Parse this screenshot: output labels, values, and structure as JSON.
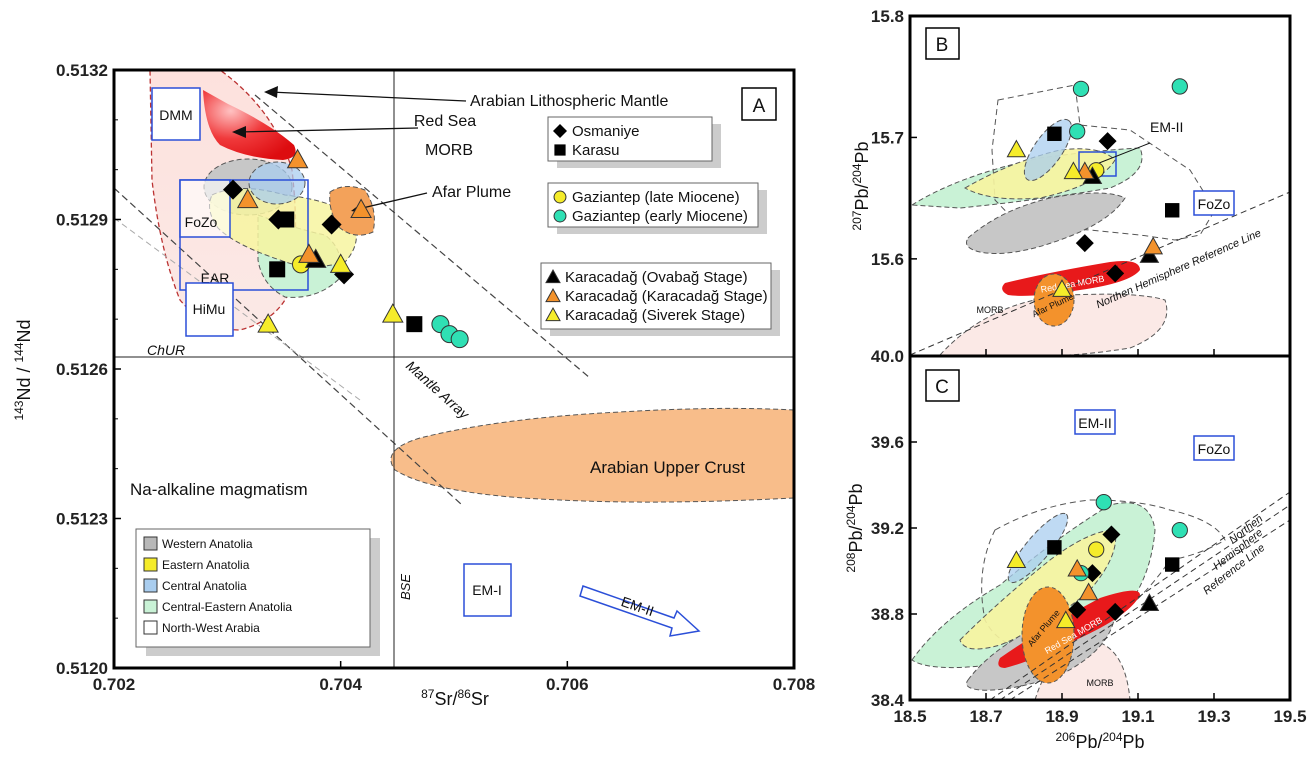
{
  "chart_data": [
    {
      "type": "scatter",
      "panel": "A",
      "xlabel": "87Sr/86Sr",
      "ylabel": "143Nd / 144Nd",
      "xlim": [
        0.702,
        0.708
      ],
      "ylim": [
        0.512,
        0.5132
      ],
      "x_ticks": [
        "0.702",
        "0.704",
        "0.706",
        "0.708"
      ],
      "y_ticks": [
        "0.5120",
        "0.5123",
        "0.5126",
        "0.5129",
        "0.5132"
      ],
      "annotations": {
        "arabian_litho": "Arabian Lithospheric Mantle",
        "red_sea": "Red Sea",
        "morb": "MORB",
        "afar": "Afar Plume",
        "dmm": "DMM",
        "fozo": "FoZo",
        "ear": "EAR",
        "himu": "HiMu",
        "chur": "ChUR",
        "mantle_array": "Mantle Array",
        "arabian_upper_crust": "Arabian Upper Crust",
        "na_alkaline": "Na-alkaline magmatism",
        "bse": "BSE",
        "em1": "EM-I",
        "em2": "EM-II"
      },
      "legend_symbols": [
        {
          "label": "Osmaniye",
          "marker": "diamond",
          "color": "#000000"
        },
        {
          "label": "Karasu",
          "marker": "square",
          "color": "#000000"
        },
        {
          "label": "Gaziantep (late Miocene)",
          "marker": "circle",
          "color": "#f5ec2a"
        },
        {
          "label": "Gaziantep (early Miocene)",
          "marker": "circle",
          "color": "#2fe0b4"
        },
        {
          "label": "Karacadağ (Ovabağ Stage)",
          "marker": "triangle",
          "color": "#000000"
        },
        {
          "label": "Karacadağ (Karacadağ Stage)",
          "marker": "triangle",
          "color": "#f3922c"
        },
        {
          "label": "Karacadağ (Siverek Stage)",
          "marker": "triangle",
          "color": "#f5ec2a"
        }
      ],
      "legend_fields": [
        {
          "label": "Western Anatolia",
          "color": "#b8b8b8"
        },
        {
          "label": "Eastern Anatolia",
          "color": "#f5ec2a"
        },
        {
          "label": "Central Anatolia",
          "color": "#a9cdef"
        },
        {
          "label": "Central-Eastern Anatolia",
          "color": "#c9f2d6"
        },
        {
          "label": "North-West Arabia",
          "color": "#ffffff"
        }
      ],
      "series": [
        {
          "name": "Osmaniye",
          "points": [
            [
              0.70305,
              0.51296
            ],
            [
              0.70345,
              0.5129
            ],
            [
              0.70392,
              0.51289
            ],
            [
              0.70403,
              0.51279
            ]
          ]
        },
        {
          "name": "Karasu",
          "points": [
            [
              0.70352,
              0.5129
            ],
            [
              0.70344,
              0.5128
            ],
            [
              0.70465,
              0.51269
            ]
          ]
        },
        {
          "name": "Gaziantep (late Miocene)",
          "points": [
            [
              0.70365,
              0.51281
            ]
          ]
        },
        {
          "name": "Gaziantep (early Miocene)",
          "points": [
            [
              0.70488,
              0.51269
            ],
            [
              0.70496,
              0.51267
            ],
            [
              0.70505,
              0.51266
            ]
          ]
        },
        {
          "name": "Karacadağ (Ovabağ Stage)",
          "points": [
            [
              0.70378,
              0.51282
            ]
          ]
        },
        {
          "name": "Karacadağ (Karacadağ Stage)",
          "points": [
            [
              0.70362,
              0.51302
            ],
            [
              0.70318,
              0.51294
            ],
            [
              0.70372,
              0.51283
            ],
            [
              0.70418,
              0.51292
            ]
          ]
        },
        {
          "name": "Karacadağ (Siverek Stage)",
          "points": [
            [
              0.70336,
              0.51269
            ],
            [
              0.704,
              0.51281
            ],
            [
              0.70446,
              0.51271
            ]
          ]
        }
      ]
    },
    {
      "type": "scatter",
      "panel": "B",
      "xlabel": "",
      "ylabel": "207Pb/204Pb",
      "xlim": [
        18.5,
        19.5
      ],
      "ylim": [
        15.52,
        15.8
      ],
      "y_ticks": [
        "15.6",
        "15.7",
        "15.8"
      ],
      "annotations": {
        "em2": "EM-II",
        "fozo": "FoZo",
        "red_sea_morb": "Red Sea MORB",
        "afar": "Afar Plume",
        "morb": "MORB",
        "nhrl": "Northen Hemisphere Reference Line"
      },
      "series": [
        {
          "name": "Osmaniye",
          "points": [
            [
              19.02,
              15.697
            ],
            [
              18.96,
              15.613
            ],
            [
              19.04,
              15.588
            ],
            [
              18.98,
              15.67
            ]
          ]
        },
        {
          "name": "Karasu",
          "points": [
            [
              18.88,
              15.703
            ],
            [
              19.19,
              15.64
            ]
          ]
        },
        {
          "name": "Gaziantep (late Miocene)",
          "points": [
            [
              18.99,
              15.673
            ]
          ]
        },
        {
          "name": "Gaziantep (early Miocene)",
          "points": [
            [
              18.95,
              15.74
            ],
            [
              19.21,
              15.742
            ],
            [
              18.94,
              15.705
            ]
          ]
        },
        {
          "name": "Karacadağ (Ovabağ Stage)",
          "points": [
            [
              19.13,
              15.603
            ],
            [
              18.98,
              15.668
            ]
          ]
        },
        {
          "name": "Karacadağ (Karacadağ Stage)",
          "points": [
            [
              19.14,
              15.61
            ],
            [
              18.96,
              15.672
            ]
          ]
        },
        {
          "name": "Karacadağ (Siverek Stage)",
          "points": [
            [
              18.78,
              15.69
            ],
            [
              18.93,
              15.672
            ],
            [
              18.9,
              15.575
            ]
          ]
        }
      ]
    },
    {
      "type": "scatter",
      "panel": "C",
      "xlabel": "206Pb/204Pb",
      "ylabel": "208Pb/204Pb",
      "xlim": [
        18.5,
        19.5
      ],
      "ylim": [
        38.4,
        40.0
      ],
      "x_ticks": [
        "18.5",
        "18.7",
        "18.9",
        "19.1",
        "19.3",
        "19.5"
      ],
      "y_ticks": [
        "38.4",
        "38.8",
        "39.2",
        "39.6",
        "40.0"
      ],
      "annotations": {
        "em2": "EM-II",
        "fozo": "FoZo",
        "afar": "Afar Plume",
        "red_sea_morb": "Red Sea MORB",
        "morb": "MORB",
        "nhrl1": "Northen",
        "nhrl2": "Hemisphere",
        "nhrl3": "Reference Line"
      },
      "series": [
        {
          "name": "Osmaniye",
          "points": [
            [
              19.03,
              39.17
            ],
            [
              18.98,
              38.99
            ],
            [
              18.94,
              38.82
            ],
            [
              19.04,
              38.81
            ]
          ]
        },
        {
          "name": "Karasu",
          "points": [
            [
              18.88,
              39.11
            ],
            [
              19.19,
              39.03
            ]
          ]
        },
        {
          "name": "Gaziantep (late Miocene)",
          "points": [
            [
              18.99,
              39.1
            ]
          ]
        },
        {
          "name": "Gaziantep (early Miocene)",
          "points": [
            [
              19.01,
              39.32
            ],
            [
              19.21,
              39.19
            ],
            [
              18.95,
              38.99
            ]
          ]
        },
        {
          "name": "Karacadağ (Ovabağ Stage)",
          "points": [
            [
              19.13,
              38.85
            ]
          ]
        },
        {
          "name": "Karacadağ (Karacadağ Stage)",
          "points": [
            [
              18.97,
              38.9
            ],
            [
              18.94,
              39.01
            ]
          ]
        },
        {
          "name": "Karacadağ (Siverek Stage)",
          "points": [
            [
              18.78,
              39.05
            ],
            [
              18.91,
              38.77
            ]
          ]
        }
      ]
    }
  ]
}
